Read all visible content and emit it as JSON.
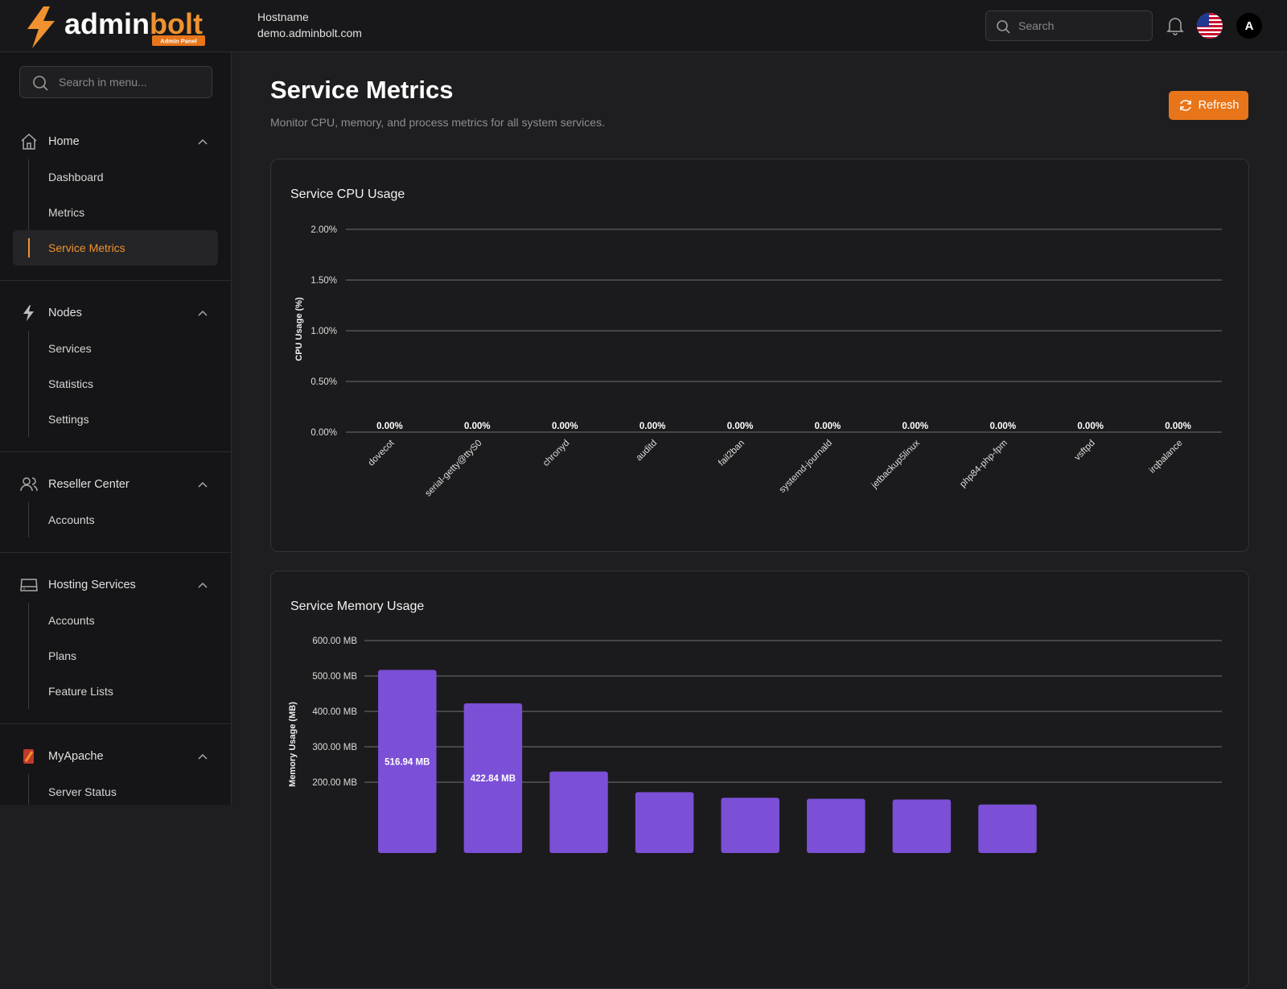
{
  "header": {
    "logo_parts": [
      "admin",
      "bolt"
    ],
    "logo_badge": "Admin Panel",
    "hostname_label": "Hostname",
    "hostname": "demo.adminbolt.com",
    "search_placeholder": "Search",
    "avatar": "A"
  },
  "sidebar": {
    "search_placeholder": "Search in menu...",
    "groups": [
      {
        "label": "Home",
        "items": [
          {
            "label": "Dashboard"
          },
          {
            "label": "Metrics"
          },
          {
            "label": "Service Metrics",
            "active": true
          }
        ]
      },
      {
        "label": "Nodes",
        "items": [
          {
            "label": "Services"
          },
          {
            "label": "Statistics"
          },
          {
            "label": "Settings"
          }
        ]
      },
      {
        "label": "Reseller Center",
        "items": [
          {
            "label": "Accounts"
          }
        ]
      },
      {
        "label": "Hosting Services",
        "items": [
          {
            "label": "Accounts"
          },
          {
            "label": "Plans"
          },
          {
            "label": "Feature Lists"
          }
        ]
      },
      {
        "label": "MyApache",
        "items": [
          {
            "label": "Server Status"
          }
        ]
      }
    ]
  },
  "page": {
    "title": "Service Metrics",
    "subtitle": "Monitor CPU, memory, and process metrics for all system services.",
    "refresh_button": "Refresh"
  },
  "chart_data": [
    {
      "type": "bar",
      "title": "Service CPU Usage",
      "y_label": "CPU Usage (%)",
      "categories": [
        "dovecot",
        "serial-getty@ttyS0",
        "chronyd",
        "auditd",
        "fail2ban",
        "systemd-journald",
        "jetbackup5linux",
        "php84-php-fpm",
        "vsftpd",
        "irqbalance"
      ],
      "values": [
        0,
        0,
        0,
        0,
        0,
        0,
        0,
        0,
        0,
        0
      ],
      "value_labels": [
        "0.00%",
        "0.00%",
        "0.00%",
        "0.00%",
        "0.00%",
        "0.00%",
        "0.00%",
        "0.00%",
        "0.00%",
        "0.00%"
      ],
      "color": "#7b4fd6",
      "ylim": [
        0,
        2
      ],
      "yticks": [
        {
          "value": 0,
          "label": "0.00%"
        },
        {
          "value": 0.5,
          "label": "0.50%"
        },
        {
          "value": 1,
          "label": "1.00%"
        },
        {
          "value": 1.5,
          "label": "1.50%"
        },
        {
          "value": 2,
          "label": "2.00%"
        }
      ],
      "grid": true
    },
    {
      "type": "bar",
      "title": "Service Memory Usage",
      "y_label": "Memory Usage (MB)",
      "categories": [
        null,
        null,
        null,
        null,
        null,
        null,
        null,
        null
      ],
      "values": [
        516.94,
        422.84,
        230,
        172,
        156,
        153,
        151,
        137
      ],
      "value_labels": [
        "516.94 MB",
        "422.84 MB",
        null,
        null,
        null,
        null,
        null,
        null
      ],
      "color": "#7b4fd6",
      "ylim": [
        0,
        600
      ],
      "yticks": [
        {
          "value": 200,
          "label": "200.00 MB"
        },
        {
          "value": 300,
          "label": "300.00 MB"
        },
        {
          "value": 400,
          "label": "400.00 MB"
        },
        {
          "value": 500,
          "label": "500.00 MB"
        },
        {
          "value": 600,
          "label": "600.00 MB"
        }
      ],
      "grid": true
    }
  ]
}
